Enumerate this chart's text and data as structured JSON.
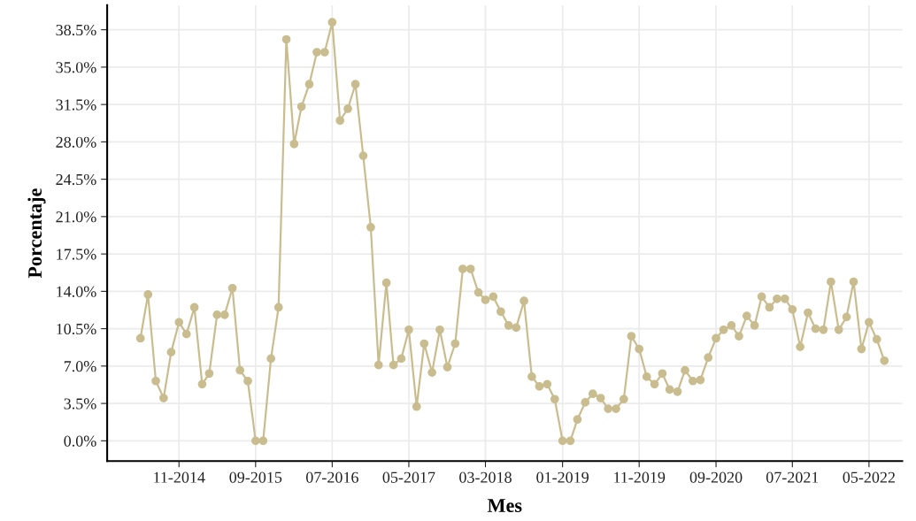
{
  "chart_data": {
    "type": "line",
    "xlabel": "Mes",
    "ylabel": "Porcentaje",
    "marker": "circle",
    "line_style": "solid",
    "grid": true,
    "x": [
      "2014-06",
      "2014-07",
      "2014-08",
      "2014-09",
      "2014-10",
      "2014-11",
      "2014-12",
      "2015-01",
      "2015-02",
      "2015-03",
      "2015-04",
      "2015-05",
      "2015-06",
      "2015-07",
      "2015-08",
      "2015-09",
      "2015-10",
      "2015-11",
      "2015-12",
      "2016-01",
      "2016-02",
      "2016-03",
      "2016-04",
      "2016-05",
      "2016-06",
      "2016-07",
      "2016-08",
      "2016-09",
      "2016-10",
      "2016-11",
      "2016-12",
      "2017-01",
      "2017-02",
      "2017-03",
      "2017-04",
      "2017-05",
      "2017-06",
      "2017-07",
      "2017-08",
      "2017-09",
      "2017-10",
      "2017-11",
      "2017-12",
      "2018-01",
      "2018-02",
      "2018-03",
      "2018-04",
      "2018-05",
      "2018-06",
      "2018-07",
      "2018-08",
      "2018-09",
      "2018-10",
      "2018-11",
      "2018-12",
      "2019-01",
      "2019-02",
      "2019-03",
      "2019-04",
      "2019-05",
      "2019-06",
      "2019-07",
      "2019-08",
      "2019-09",
      "2019-10",
      "2019-11",
      "2019-12",
      "2020-01",
      "2020-02",
      "2020-03",
      "2020-04",
      "2020-05",
      "2020-06",
      "2020-07",
      "2020-08",
      "2020-09",
      "2020-10",
      "2020-11",
      "2020-12",
      "2021-01",
      "2021-02",
      "2021-03",
      "2021-04",
      "2021-05",
      "2021-06",
      "2021-07",
      "2021-08",
      "2021-09",
      "2021-10",
      "2021-11",
      "2021-12",
      "2022-01",
      "2022-02",
      "2022-03",
      "2022-04",
      "2022-05",
      "2022-06",
      "2022-07"
    ],
    "series": [
      {
        "color": "#c9bd8f",
        "values": [
          9.6,
          13.7,
          5.6,
          4.0,
          8.3,
          11.1,
          10.0,
          12.5,
          5.3,
          6.3,
          11.8,
          11.8,
          14.3,
          6.6,
          5.6,
          0.0,
          0.0,
          7.7,
          12.5,
          37.6,
          27.8,
          31.3,
          33.4,
          36.4,
          36.4,
          39.2,
          30.0,
          31.1,
          33.4,
          26.7,
          20.0,
          7.1,
          14.8,
          7.1,
          7.7,
          10.4,
          3.2,
          9.1,
          6.4,
          10.4,
          6.9,
          9.1,
          16.1,
          16.1,
          13.9,
          13.2,
          13.5,
          12.1,
          10.8,
          10.6,
          13.1,
          6.0,
          5.1,
          5.3,
          3.9,
          0.0,
          0.0,
          2.0,
          3.6,
          4.4,
          4.0,
          3.0,
          3.0,
          3.9,
          9.8,
          8.6,
          6.0,
          5.3,
          6.3,
          4.8,
          4.6,
          6.6,
          5.6,
          5.7,
          7.8,
          9.6,
          10.4,
          10.8,
          9.8,
          11.7,
          10.8,
          13.5,
          12.5,
          13.3,
          13.3,
          12.3,
          8.8,
          12.0,
          10.5,
          10.4,
          14.9,
          10.4,
          11.6,
          14.9,
          8.6,
          11.1,
          9.5,
          7.5
        ]
      }
    ],
    "xlim": [
      "2014-01-20",
      "2022-09-10"
    ],
    "xticks": [
      {
        "value": "2014-11",
        "label": "11-2014"
      },
      {
        "value": "2015-09",
        "label": "09-2015"
      },
      {
        "value": "2016-07",
        "label": "07-2016"
      },
      {
        "value": "2017-05",
        "label": "05-2017"
      },
      {
        "value": "2018-03",
        "label": "03-2018"
      },
      {
        "value": "2019-01",
        "label": "01-2019"
      },
      {
        "value": "2019-11",
        "label": "11-2019"
      },
      {
        "value": "2020-09",
        "label": "09-2020"
      },
      {
        "value": "2021-07",
        "label": "07-2021"
      },
      {
        "value": "2022-05",
        "label": "05-2022"
      }
    ],
    "ylim": [
      -1.9,
      40.8
    ],
    "yticks": [
      {
        "value": 0,
        "label": "0.0%"
      },
      {
        "value": 3.5,
        "label": "3.5%"
      },
      {
        "value": 7,
        "label": "7.0%"
      },
      {
        "value": 10.5,
        "label": "10.5%"
      },
      {
        "value": 14,
        "label": "14.0%"
      },
      {
        "value": 17.5,
        "label": "17.5%"
      },
      {
        "value": 21,
        "label": "21.0%"
      },
      {
        "value": 24.5,
        "label": "24.5%"
      },
      {
        "value": 28,
        "label": "28.0%"
      },
      {
        "value": 31.5,
        "label": "31.5%"
      },
      {
        "value": 35,
        "label": "35.0%"
      },
      {
        "value": 38.5,
        "label": "38.5%"
      }
    ]
  }
}
